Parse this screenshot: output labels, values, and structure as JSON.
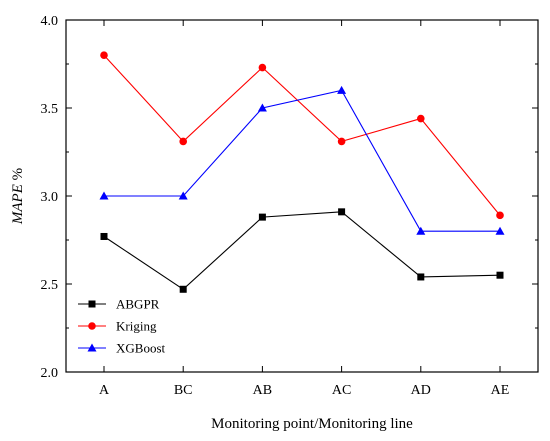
{
  "chart_data": {
    "type": "line",
    "categories": [
      "A",
      "BC",
      "AB",
      "AC",
      "AD",
      "AE"
    ],
    "series": [
      {
        "name": "ABGPR",
        "values": [
          2.77,
          2.47,
          2.88,
          2.91,
          2.54,
          2.55
        ],
        "color": "#000000",
        "marker": "square"
      },
      {
        "name": "Kriging",
        "values": [
          3.8,
          3.31,
          3.73,
          3.31,
          3.44,
          2.89
        ],
        "color": "#ff0000",
        "marker": "circle"
      },
      {
        "name": "XGBoost",
        "values": [
          3.0,
          3.0,
          3.5,
          3.6,
          2.8,
          2.8
        ],
        "color": "#0000ff",
        "marker": "triangle"
      }
    ],
    "xlabel": "Monitoring point/Monitoring line",
    "ylabel": "MAPE %",
    "ylabel_italic_part": "MAPE",
    "ylabel_rest": " %",
    "ylim": [
      2.0,
      4.0
    ],
    "yticks": [
      "2.0",
      "2.5",
      "3.0",
      "3.5",
      "4.0"
    ],
    "grid": false,
    "legend_position": "bottom-left"
  }
}
